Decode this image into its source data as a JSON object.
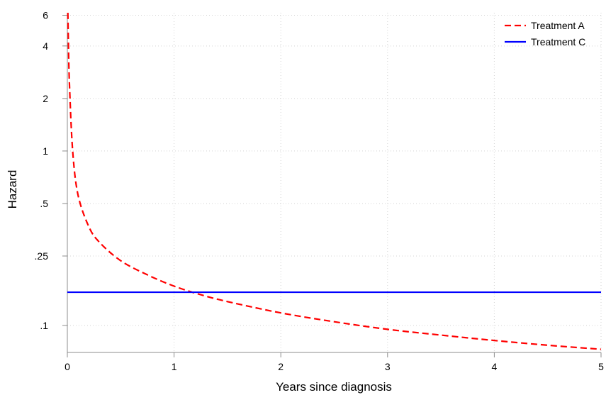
{
  "chart_data": {
    "type": "line",
    "xlabel": "Years since diagnosis",
    "ylabel": "Hazard",
    "xlim": [
      0,
      5
    ],
    "ylim": [
      0.07,
      6.2
    ],
    "y_scale": "log",
    "grid": true,
    "legend_position": "top-right",
    "x_ticks": [
      {
        "value": 0,
        "label": "0"
      },
      {
        "value": 1,
        "label": "1"
      },
      {
        "value": 2,
        "label": "2"
      },
      {
        "value": 3,
        "label": "3"
      },
      {
        "value": 4,
        "label": "4"
      },
      {
        "value": 5,
        "label": "5"
      }
    ],
    "y_ticks": [
      {
        "value": 0.1,
        "label": ".1"
      },
      {
        "value": 0.25,
        "label": ".25"
      },
      {
        "value": 0.5,
        "label": ".5"
      },
      {
        "value": 1,
        "label": "1"
      },
      {
        "value": 2,
        "label": "2"
      },
      {
        "value": 4,
        "label": "4"
      },
      {
        "value": 6,
        "label": "6"
      }
    ],
    "series": [
      {
        "name": "Treatment A",
        "color": "#ff0000",
        "style": "dashed",
        "x": [
          0.005,
          0.01,
          0.02,
          0.05,
          0.1,
          0.2,
          0.3,
          0.5,
          0.75,
          1,
          1.25,
          1.5,
          2,
          2.5,
          3,
          3.5,
          4,
          4.5,
          5
        ],
        "y": [
          6.2,
          4.2,
          2.4,
          1.0,
          0.56,
          0.37,
          0.3,
          0.235,
          0.195,
          0.168,
          0.15,
          0.137,
          0.118,
          0.105,
          0.095,
          0.088,
          0.082,
          0.077,
          0.073
        ]
      },
      {
        "name": "Treatment C",
        "color": "#0000ff",
        "style": "solid",
        "x": [
          0,
          5
        ],
        "y": [
          0.155,
          0.155
        ]
      }
    ]
  }
}
